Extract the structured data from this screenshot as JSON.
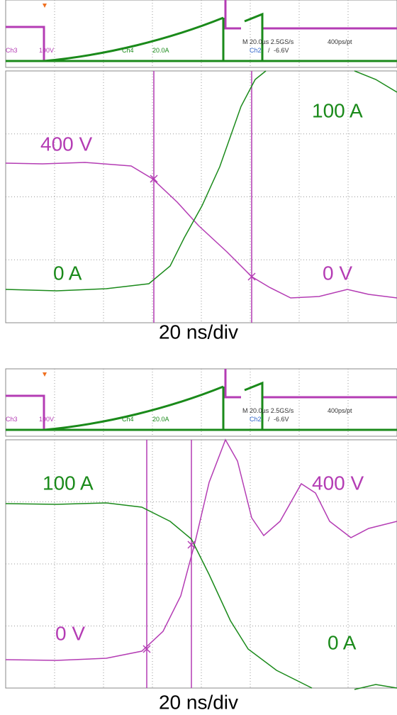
{
  "panels": [
    {
      "strip": {
        "ch3": "Ch3",
        "ch3_scale": "100V",
        "ch4": "Ch4",
        "ch4_scale": "20.0A",
        "timebase": "M 20.0µs 2.5GS/s",
        "resolution": "400ps/pt",
        "trigger_source": "Ch2",
        "trigger_slope": "/",
        "trigger_level": "-6.6V"
      },
      "labels": [
        "400 V",
        "100 A",
        "0 A",
        "0 V"
      ],
      "footer": "20 ns/div"
    },
    {
      "strip": {
        "ch3": "Ch3",
        "ch3_scale": "100V",
        "ch4": "Ch4",
        "ch4_scale": "20.0A",
        "timebase": "M 20.0µs 2.5GS/s",
        "resolution": "400ps/pt",
        "trigger_source": "Ch2",
        "trigger_slope": "/",
        "trigger_level": "-6.6V"
      },
      "labels": [
        "100 A",
        "400 V",
        "0 V",
        "0 A"
      ],
      "footer": "20 ns/div"
    }
  ]
}
